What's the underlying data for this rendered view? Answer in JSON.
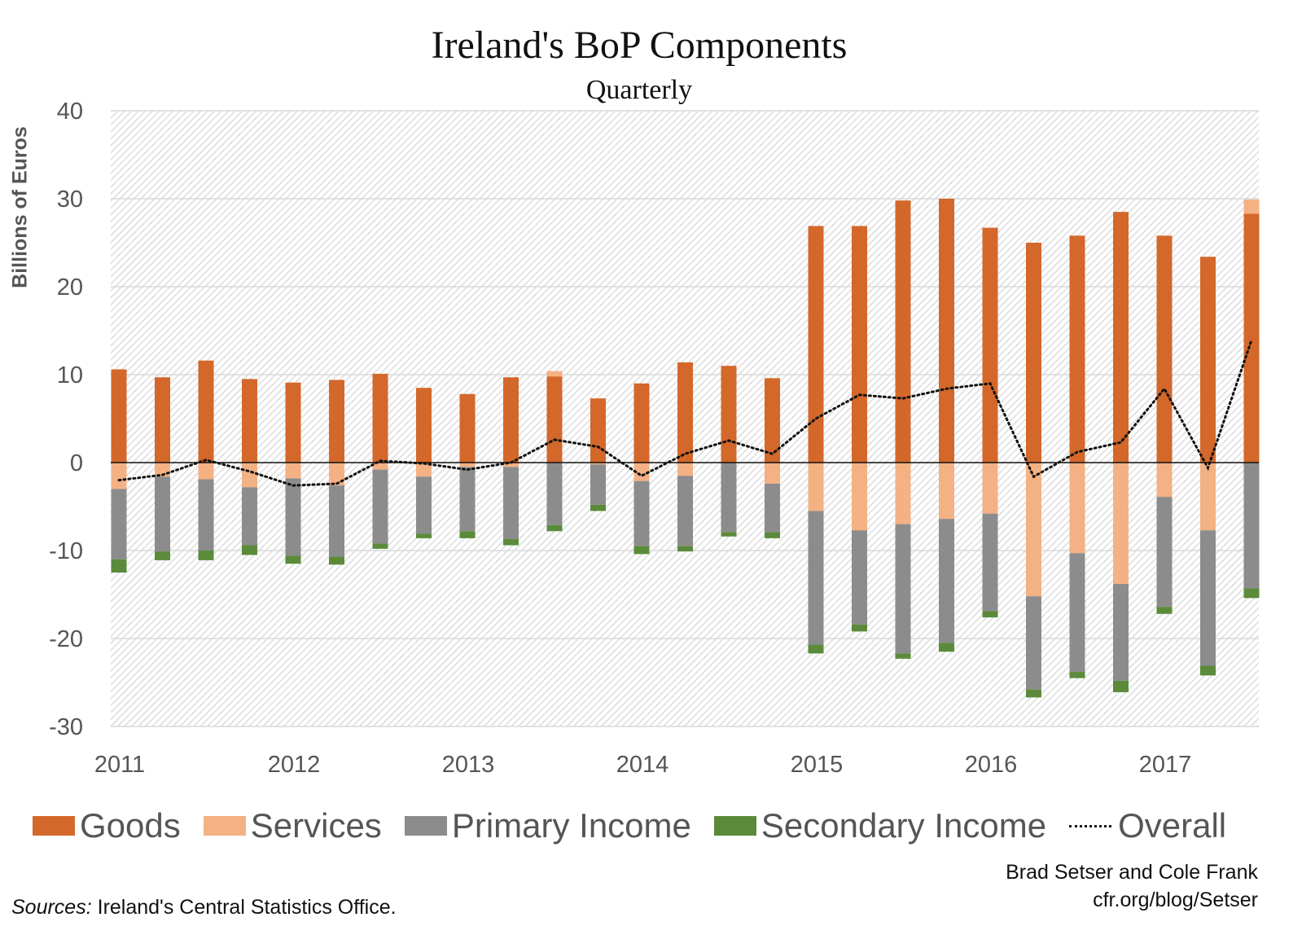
{
  "chart_data": {
    "type": "bar",
    "stacked": true,
    "title": "Ireland's BoP Components",
    "subtitle": "Quarterly",
    "ylabel": "Billions of Euros",
    "xlabel": "",
    "ylim": [
      -30,
      40
    ],
    "yticks": [
      40,
      30,
      20,
      10,
      0,
      -10,
      -20,
      -30
    ],
    "xtick_labels": [
      "2011",
      "2012",
      "2013",
      "2014",
      "2015",
      "2016",
      "2017"
    ],
    "grid": true,
    "legend_position": "bottom",
    "categories": [
      "2011Q1",
      "2011Q2",
      "2011Q3",
      "2011Q4",
      "2012Q1",
      "2012Q2",
      "2012Q3",
      "2012Q4",
      "2013Q1",
      "2013Q2",
      "2013Q3",
      "2013Q4",
      "2014Q1",
      "2014Q2",
      "2014Q3",
      "2014Q4",
      "2015Q1",
      "2015Q2",
      "2015Q3",
      "2015Q4",
      "2016Q1",
      "2016Q2",
      "2016Q3",
      "2016Q4",
      "2017Q1",
      "2017Q2",
      "2017Q3"
    ],
    "series": [
      {
        "name": "Goods",
        "color": "#d3682a",
        "values": [
          10.6,
          9.7,
          11.6,
          9.5,
          9.1,
          9.4,
          10.1,
          8.5,
          7.8,
          9.7,
          9.8,
          7.3,
          9.0,
          11.4,
          11.0,
          9.6,
          26.9,
          26.9,
          29.8,
          30.0,
          26.7,
          25.0,
          25.8,
          28.5,
          25.8,
          23.4,
          28.3
        ]
      },
      {
        "name": "Services",
        "color": "#f4b183",
        "values": [
          -3.0,
          -1.6,
          -1.9,
          -2.8,
          -1.8,
          -2.6,
          -0.8,
          -1.6,
          -0.5,
          -0.5,
          0.6,
          -0.2,
          -2.1,
          -1.5,
          0.0,
          -2.4,
          -5.5,
          -7.7,
          -7.0,
          -6.4,
          -5.8,
          -15.2,
          -10.3,
          -13.8,
          -3.9,
          -7.7,
          1.6
        ]
      },
      {
        "name": "Primary Income",
        "color": "#8c8c8c",
        "values": [
          -8.0,
          -8.5,
          -8.1,
          -6.6,
          -8.8,
          -8.1,
          -8.4,
          -6.5,
          -7.3,
          -8.2,
          -7.1,
          -4.6,
          -7.4,
          -8.0,
          -7.9,
          -5.5,
          -15.2,
          -10.7,
          -14.7,
          -14.1,
          -11.1,
          -10.6,
          -13.5,
          -11.0,
          -12.5,
          -15.4,
          -14.3
        ]
      },
      {
        "name": "Secondary Income",
        "color": "#5b8b3a",
        "values": [
          -1.5,
          -1.0,
          -1.1,
          -1.1,
          -0.9,
          -0.9,
          -0.6,
          -0.5,
          -0.8,
          -0.7,
          -0.7,
          -0.7,
          -0.9,
          -0.6,
          -0.5,
          -0.7,
          -1.0,
          -0.8,
          -0.6,
          -1.0,
          -0.7,
          -0.9,
          -0.7,
          -1.3,
          -0.8,
          -1.1,
          -1.1
        ]
      },
      {
        "name": "Overall",
        "type": "line",
        "style": "dotted",
        "color": "#111111",
        "values": [
          -2.0,
          -1.4,
          0.3,
          -1.0,
          -2.6,
          -2.4,
          0.2,
          -0.1,
          -0.8,
          0.0,
          2.6,
          1.8,
          -1.5,
          1.0,
          2.5,
          1.0,
          5.0,
          7.7,
          7.3,
          8.4,
          9.0,
          -1.6,
          1.2,
          2.3,
          8.4,
          -0.6,
          13.9
        ]
      }
    ]
  },
  "credit": [
    "Brad Setser and Cole Frank",
    "cfr.org/blog/Setser"
  ],
  "source": {
    "label": "Sources:",
    "text": " Ireland's Central Statistics Office."
  }
}
